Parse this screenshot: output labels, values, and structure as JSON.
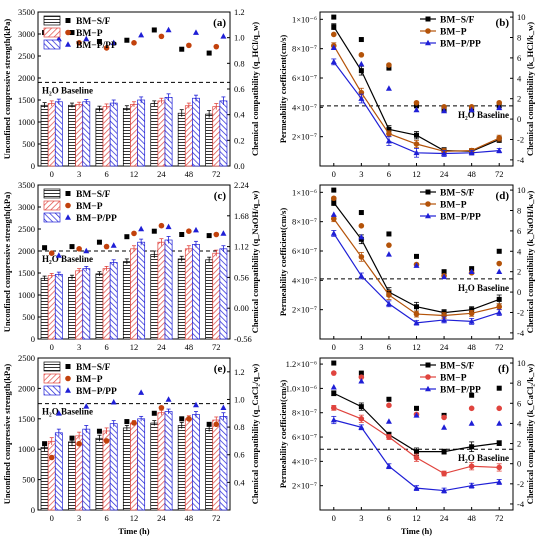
{
  "chart_data": [
    {
      "id": "a",
      "type": "bar",
      "panel_label": "(a)",
      "categories": [
        "0",
        "3",
        "6",
        "12",
        "24",
        "48",
        "72"
      ],
      "xlabel": "",
      "ylabel": "Unconfined compressive strength(kPa)",
      "ylim": [
        0,
        3500
      ],
      "yticks": [
        "0",
        "500",
        "1000",
        "1500",
        "2000",
        "2500",
        "3000",
        "3500"
      ],
      "y2label": "Chemical compatibility (q_HCl/q_w)",
      "y2lim": [
        0,
        1.2
      ],
      "y2ticks": [
        "0.0",
        "0.2",
        "0.4",
        "0.6",
        "0.8",
        "1.0",
        "1.2"
      ],
      "baseline": {
        "label": "H₂O Baseline",
        "value": 1900
      },
      "series": [
        {
          "name": "BM−S/F",
          "values": [
            1380,
            1380,
            1300,
            1310,
            1420,
            1200,
            1180
          ],
          "errors": [
            60,
            50,
            60,
            60,
            60,
            80,
            80
          ],
          "ratio": [
            1.04,
            1.04,
            0.97,
            0.98,
            1.06,
            0.91,
            0.88
          ]
        },
        {
          "name": "BM−P",
          "values": [
            1420,
            1400,
            1350,
            1400,
            1480,
            1370,
            1350
          ],
          "errors": [
            60,
            50,
            60,
            60,
            60,
            60,
            70
          ],
          "ratio": [
            0.96,
            0.96,
            0.92,
            0.96,
            1.01,
            0.94,
            0.93
          ]
        },
        {
          "name": "BM−P/PP",
          "values": [
            1460,
            1460,
            1430,
            1500,
            1560,
            1540,
            1480
          ],
          "errors": [
            60,
            50,
            70,
            70,
            80,
            70,
            90
          ],
          "ratio": [
            0.99,
            0.99,
            0.96,
            1.02,
            1.06,
            1.04,
            1.01
          ]
        }
      ]
    },
    {
      "id": "b",
      "type": "line",
      "panel_label": "(b)",
      "x": [
        0,
        3,
        6,
        12,
        24,
        48,
        72
      ],
      "xticks": [
        "0",
        "3",
        "6",
        "12",
        "24",
        "48",
        "72"
      ],
      "xlabel": "",
      "ylabel": "Permeability coefficient(cm/s)",
      "ylim": [
        0,
        1.05e-06
      ],
      "yticks": [
        {
          "v": 2e-07,
          "label": "2×10⁻⁷"
        },
        {
          "v": 4e-07,
          "label": "4×10⁻⁷"
        },
        {
          "v": 6e-07,
          "label": "6×10⁻⁷"
        },
        {
          "v": 8e-07,
          "label": "8×10⁻⁷"
        },
        {
          "v": 1e-06,
          "label": "1×10⁻⁶"
        }
      ],
      "y2label": "Chemical compatibility (k_HCl/k_w)",
      "y2lim": [
        -4.6,
        10.5
      ],
      "y2ticks": [
        "-4",
        "-2",
        "0",
        "2",
        "4",
        "6",
        "8",
        "10"
      ],
      "baseline": {
        "label": "H₂O Baseline",
        "value": 4.1e-07
      },
      "series": [
        {
          "name": "BM−S/F",
          "color": "#000000",
          "values": [
            9.5e-07,
            6.5e-07,
            2.5e-07,
            2.1e-07,
            1.05e-07,
            1e-07,
            1.8e-07
          ],
          "errors": [
            2e-08,
            3e-08,
            2.5e-08,
            2.5e-08,
            2e-08,
            1.5e-08,
            2e-08
          ],
          "ratio": [
            10.0,
            7.8,
            5.0,
            1.3,
            0.9,
            0.9,
            1.3
          ]
        },
        {
          "name": "BM−P",
          "color": "#b45309",
          "values": [
            8.2e-07,
            5e-07,
            2.2e-07,
            1.5e-07,
            1e-07,
            1.05e-07,
            1.9e-07
          ],
          "errors": [
            2e-08,
            3e-08,
            2e-08,
            2.5e-08,
            2e-08,
            1.5e-08,
            2e-08
          ],
          "ratio": [
            8.3,
            6.3,
            5.3,
            1.6,
            1.2,
            1.2,
            1.6
          ]
        },
        {
          "name": "BM−P/PP",
          "color": "#1f1fd6",
          "values": [
            7.1e-07,
            4.6e-07,
            1.7e-07,
            9e-08,
            8.5e-08,
            9e-08,
            1.05e-07
          ],
          "errors": [
            2e-08,
            3e-08,
            3e-08,
            3e-08,
            2e-08,
            1.5e-08,
            1.5e-08
          ],
          "ratio": [
            7.0,
            5.4,
            3.0,
            0.9,
            0.8,
            0.9,
            1.1
          ]
        }
      ]
    },
    {
      "id": "c",
      "type": "bar",
      "panel_label": "(c)",
      "categories": [
        "0",
        "3",
        "6",
        "12",
        "24",
        "48",
        "72"
      ],
      "xlabel": "",
      "ylabel": "Unconfined compressive strength(kPa)",
      "ylim": [
        0,
        3500
      ],
      "yticks": [
        "0",
        "500",
        "1000",
        "1500",
        "2000",
        "2500",
        "3000",
        "3500"
      ],
      "y2label": "Chemical compatibility (q_NaOH/q_w)",
      "y2lim": [
        -0.56,
        2.24
      ],
      "y2ticks": [
        "-0.56",
        "0.00",
        "0.56",
        "1.12",
        "1.68",
        "2.24"
      ],
      "baseline": {
        "label": "H₂O Baseline",
        "value": 2000
      },
      "series": [
        {
          "name": "BM−S/F",
          "values": [
            1380,
            1400,
            1480,
            1760,
            1920,
            1820,
            1800
          ],
          "errors": [
            50,
            50,
            50,
            60,
            80,
            60,
            60
          ],
          "ratio": [
            1.1,
            1.12,
            1.2,
            1.3,
            1.4,
            1.34,
            1.32
          ]
        },
        {
          "name": "BM−P",
          "values": [
            1440,
            1550,
            1600,
            2050,
            2200,
            2050,
            1950
          ],
          "errors": [
            50,
            50,
            50,
            70,
            80,
            70,
            70
          ],
          "ratio": [
            1.0,
            1.08,
            1.12,
            1.36,
            1.5,
            1.4,
            1.34
          ]
        },
        {
          "name": "BM−P/PP",
          "values": [
            1470,
            1600,
            1740,
            2200,
            2250,
            2150,
            2050
          ],
          "errors": [
            50,
            50,
            60,
            70,
            80,
            70,
            70
          ],
          "ratio": [
            0.96,
            1.04,
            1.14,
            1.44,
            1.48,
            1.42,
            1.36
          ]
        }
      ]
    },
    {
      "id": "d",
      "type": "line",
      "panel_label": "(d)",
      "x": [
        0,
        3,
        6,
        12,
        24,
        48,
        72
      ],
      "xticks": [
        "0",
        "3",
        "6",
        "12",
        "24",
        "48",
        "72"
      ],
      "xlabel": "",
      "ylabel": "Permeability coefficient(cm/s)",
      "ylim": [
        0,
        1.05e-06
      ],
      "yticks": [
        {
          "v": 2e-07,
          "label": "2×10⁻⁷"
        },
        {
          "v": 4e-07,
          "label": "4×10⁻⁷"
        },
        {
          "v": 6e-07,
          "label": "6×10⁻⁷"
        },
        {
          "v": 8e-07,
          "label": "8×10⁻⁷"
        },
        {
          "v": 1e-06,
          "label": "1×10⁻⁶"
        }
      ],
      "y2label": "Chemical compatibility (k_NaOH/k_w)",
      "y2lim": [
        -4.6,
        10.5
      ],
      "y2ticks": [
        "-4",
        "-2",
        "0",
        "2",
        "4",
        "6",
        "8",
        "10"
      ],
      "baseline": {
        "label": "H₂O Baseline",
        "value": 4.1e-07
      },
      "series": [
        {
          "name": "BM−S/F",
          "color": "#000000",
          "values": [
            9.3e-07,
            6.8e-07,
            3.2e-07,
            2.2e-07,
            1.8e-07,
            2e-07,
            2.7e-07
          ],
          "errors": [
            2e-08,
            3e-08,
            3e-08,
            3e-08,
            2e-08,
            2e-08,
            3e-08
          ],
          "ratio": [
            10.0,
            7.8,
            5.7,
            3.5,
            2.0,
            2.3,
            4.0
          ]
        },
        {
          "name": "BM−P",
          "color": "#b45309",
          "values": [
            8.2e-07,
            5.6e-07,
            3e-07,
            1.7e-07,
            1.6e-07,
            1.75e-07,
            2.2e-07
          ],
          "errors": [
            2e-08,
            3e-08,
            3e-08,
            2e-08,
            2e-08,
            2e-08,
            2e-08
          ],
          "ratio": [
            9.2,
            6.5,
            4.6,
            2.7,
            1.6,
            1.9,
            2.8
          ]
        },
        {
          "name": "BM−P/PP",
          "color": "#1f1fd6",
          "values": [
            7.2e-07,
            4.3e-07,
            2.4e-07,
            1.1e-07,
            1.3e-07,
            1.2e-07,
            1.8e-07
          ],
          "errors": [
            2e-08,
            2e-08,
            2e-08,
            1.5e-08,
            2e-08,
            2e-08,
            2e-08
          ],
          "ratio": [
            7.6,
            5.4,
            3.7,
            2.6,
            1.5,
            2.0,
            2.0
          ]
        }
      ]
    },
    {
      "id": "e",
      "type": "bar",
      "panel_label": "(e)",
      "categories": [
        "0",
        "3",
        "6",
        "12",
        "24",
        "48",
        "72"
      ],
      "xlabel": "Time (h)",
      "ylabel": "Unconfined compressive strength(kPa)",
      "ylim": [
        0,
        2500
      ],
      "yticks": [
        "0",
        "500",
        "1000",
        "1500",
        "2000",
        "2500"
      ],
      "y2label": "Chemical compatibility (q_CaCl₂/q_w)",
      "y2lim": [
        0.2,
        1.3
      ],
      "y2ticks": [
        "0.4",
        "0.6",
        "0.8",
        "1.0",
        "1.2"
      ],
      "baseline": {
        "label": "H₂O Baseline",
        "value": 1750
      },
      "series": [
        {
          "name": "BM−S/F",
          "values": [
            1030,
            1120,
            1180,
            1350,
            1430,
            1390,
            1340
          ],
          "errors": [
            70,
            70,
            50,
            40,
            40,
            50,
            50
          ],
          "ratio": [
            0.68,
            0.72,
            0.77,
            0.84,
            0.9,
            0.86,
            0.82
          ]
        },
        {
          "name": "BM−P",
          "values": [
            1130,
            1220,
            1300,
            1430,
            1600,
            1500,
            1480
          ],
          "errors": [
            60,
            60,
            50,
            40,
            40,
            50,
            50
          ],
          "ratio": [
            0.58,
            0.68,
            0.7,
            0.83,
            0.94,
            0.86,
            0.82
          ]
        },
        {
          "name": "BM−P/PP",
          "values": [
            1270,
            1330,
            1420,
            1500,
            1620,
            1570,
            1540
          ],
          "errors": [
            60,
            60,
            50,
            40,
            40,
            50,
            60
          ],
          "ratio": [
            0.9,
            0.95,
            0.98,
            1.05,
            1.0,
            0.96,
            0.94
          ]
        }
      ]
    },
    {
      "id": "f",
      "type": "line",
      "panel_label": "(f)",
      "x": [
        0,
        3,
        6,
        12,
        24,
        48,
        72
      ],
      "xticks": [
        "0",
        "3",
        "6",
        "12",
        "24",
        "48",
        "72"
      ],
      "xlabel": "Time (h)",
      "ylabel": "Permeability coefficient(cm/s)",
      "ylim": [
        0,
        1.25e-06
      ],
      "yticks": [
        {
          "v": 2e-07,
          "label": "2×10⁻⁷"
        },
        {
          "v": 4e-07,
          "label": "4×10⁻⁷"
        },
        {
          "v": 6e-07,
          "label": "6×10⁻⁷"
        },
        {
          "v": 8e-07,
          "label": "8×10⁻⁷"
        },
        {
          "v": 1e-06,
          "label": "1.0×10⁻⁶"
        },
        {
          "v": 1.2e-06,
          "label": "1.2×10⁻⁶"
        }
      ],
      "y2label": "Chemical compatibility (k_CaCl₂/k_w)",
      "y2lim": [
        -4.6,
        10.5
      ],
      "y2ticks": [
        "-4",
        "-2",
        "0",
        "2",
        "4",
        "6",
        "8",
        "10"
      ],
      "baseline": {
        "label": "H₂O Baseline",
        "value": 5e-07
      },
      "series": [
        {
          "name": "BM−S/F",
          "color": "#000000",
          "values": [
            9.6e-07,
            8.5e-07,
            6.2e-07,
            4.8e-07,
            4.8e-07,
            5.2e-07,
            5.5e-07
          ],
          "errors": [
            2e-08,
            3e-08,
            2e-08,
            3e-08,
            2e-08,
            4e-08,
            2e-08
          ],
          "ratio": [
            10.0,
            9.0,
            6.4,
            5.5,
            4.8,
            6.8,
            7.5
          ]
        },
        {
          "name": "BM−P",
          "color": "#e0443e",
          "values": [
            8.4e-07,
            7.5e-07,
            6e-07,
            4.3e-07,
            3e-07,
            3.6e-07,
            3.5e-07
          ],
          "errors": [
            2e-08,
            3e-08,
            2e-08,
            3e-08,
            2e-08,
            3e-08,
            3e-08
          ],
          "ratio": [
            9.0,
            8.6,
            5.8,
            4.9,
            4.6,
            5.5,
            5.5
          ]
        },
        {
          "name": "BM−P/PP",
          "color": "#1f1fd6",
          "values": [
            7.4e-07,
            6.8e-07,
            3.6e-07,
            1.8e-07,
            1.6e-07,
            2e-07,
            2.3e-07
          ],
          "errors": [
            3e-08,
            2e-08,
            2e-08,
            2e-08,
            2e-08,
            2e-08,
            2e-08
          ],
          "ratio": [
            7.6,
            8.2,
            4.2,
            4.8,
            3.6,
            4.0,
            4.0
          ]
        }
      ]
    }
  ],
  "colors": {
    "bar_sf": "#000000",
    "bar_p": "#e0443e",
    "bar_pp": "#1f1fd6",
    "ratio_p_bar": "#c2410c"
  },
  "marker_shapes": [
    "square",
    "circle",
    "triangle"
  ]
}
